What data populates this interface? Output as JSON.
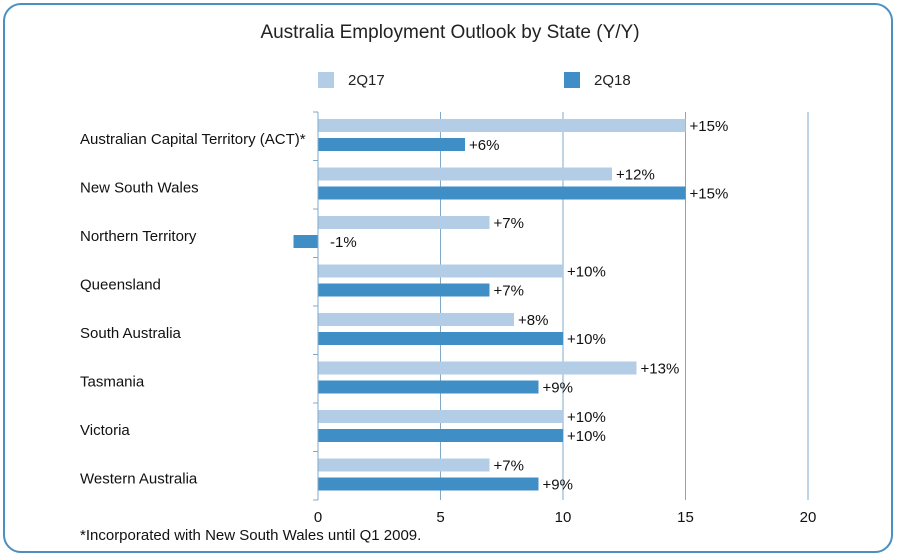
{
  "chart_data": {
    "type": "bar",
    "orientation": "horizontal",
    "title": "Australia Employment Outlook by State (Y/Y)",
    "categories": [
      "Australian Capital Territory (ACT)*",
      "New South Wales",
      "Northern Territory",
      "Queensland",
      "South Australia",
      "Tasmania",
      "Victoria",
      "Western Australia"
    ],
    "series": [
      {
        "name": "2Q17",
        "color": "#b4cde6",
        "values": [
          15,
          12,
          7,
          10,
          8,
          13,
          10,
          7
        ],
        "labels": [
          "+15%",
          "+12%",
          "+7%",
          "+10%",
          "+8%",
          "+13%",
          "+10%",
          "+7%"
        ]
      },
      {
        "name": "2Q18",
        "color": "#3f8ec6",
        "values": [
          6,
          15,
          -1,
          7,
          10,
          9,
          10,
          9
        ],
        "labels": [
          "+6%",
          "+15%",
          "-1%",
          "+7%",
          "+10%",
          "+9%",
          "+10%",
          "+9%"
        ]
      }
    ],
    "xlim": [
      0,
      20
    ],
    "xticks": [
      0,
      5,
      10,
      15,
      20
    ],
    "grid": true,
    "legend_position": "top",
    "footnote": "*Incorporated with New South Wales until Q1 2009."
  }
}
